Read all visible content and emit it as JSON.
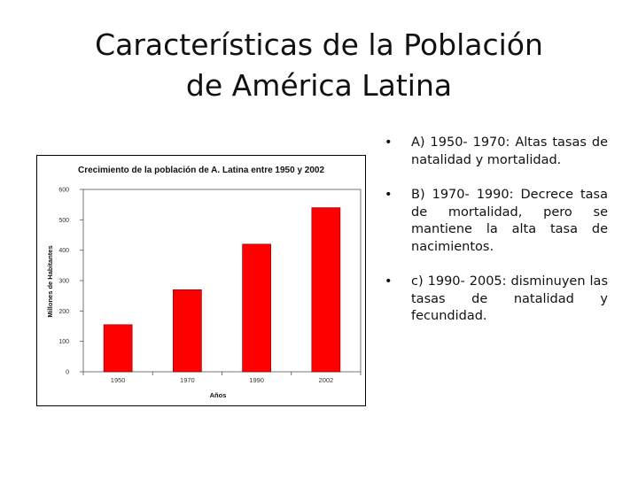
{
  "slide": {
    "title_lines": [
      "Características de la Población",
      "de América Latina"
    ],
    "bullets": [
      {
        "marker": "•",
        "text": "A) 1950- 1970: Altas tasas de natalidad y mortalidad."
      },
      {
        "marker": "•",
        "text": "B) 1970- 1990: Decrece tasa de mortalidad, pero se mantiene la alta tasa de nacimientos."
      },
      {
        "marker": "•",
        "text": "c) 1990- 2005: disminuyen las tasas de natalidad y fecundidad."
      }
    ]
  },
  "chart_data": {
    "type": "bar",
    "title": "Crecimiento de la población de A. Latina entre 1950 y 2002",
    "categories": [
      "1950",
      "1970",
      "1990",
      "2002"
    ],
    "values": [
      155,
      270,
      420,
      540
    ],
    "xlabel": "Años",
    "ylabel": "Millones de Habitantes",
    "ylim": [
      0,
      600
    ],
    "yticks": [
      0,
      100,
      200,
      300,
      400,
      500,
      600
    ],
    "bar_color": "#ff0000",
    "grid": false,
    "legend": "none"
  }
}
